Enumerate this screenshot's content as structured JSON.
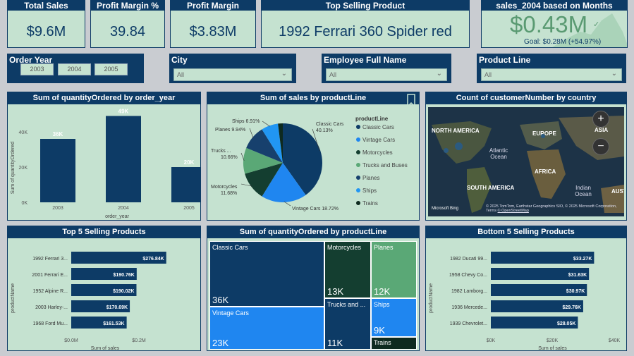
{
  "kpis": {
    "total_sales": {
      "title": "Total Sales",
      "value": "$9.6M"
    },
    "profit_margin_pct": {
      "title": "Profit Margin %",
      "value": "39.84"
    },
    "profit_margin": {
      "title": "Profit Margin",
      "value": "$3.83M"
    },
    "top_product": {
      "title": "Top Selling Product",
      "value": "1992 Ferrari 360 Spider red"
    },
    "sales_2004": {
      "title": "sales_2004 based on Months",
      "value": "$0.43M",
      "goal": "Goal: $0.28M (+54.97%)"
    }
  },
  "slicers": {
    "order_year": {
      "title": "Order Year",
      "options": [
        "2003",
        "2004",
        "2005"
      ]
    },
    "city": {
      "title": "City",
      "value": "All"
    },
    "employee": {
      "title": "Employee Full Name",
      "value": "All"
    },
    "product_line": {
      "title": "Product Line",
      "value": "All"
    }
  },
  "panels": {
    "qty_by_year": "Sum of quantityOrdered by order_year",
    "sales_by_line": "Sum of sales by productLine",
    "customers_by_country": "Count of customerNumber by country",
    "top5": "Top 5 Selling Products",
    "qty_by_line": "Sum of quantityOrdered by productLine",
    "bottom5": "Bottom 5 Selling Products"
  },
  "map": {
    "labels": [
      "NORTH AMERICA",
      "EUROPE",
      "ASIA",
      "Atlantic Ocean",
      "AFRICA",
      "SOUTH AMERICA",
      "Indian Ocean",
      "AUST"
    ],
    "attribution": "© 2025 TomTom, Earthstar Geographics SIO, © 2025 Microsoft Corporation, Terms",
    "attribution2": "© OpenStreetMap",
    "brand": "Microsoft Bing"
  },
  "treemap": [
    {
      "name": "Classic Cars",
      "value": "36K"
    },
    {
      "name": "Vintage Cars",
      "value": "23K"
    },
    {
      "name": "Motorcycles",
      "value": "13K"
    },
    {
      "name": "Trucks and ...",
      "value": "11K"
    },
    {
      "name": "Planes",
      "value": "12K"
    },
    {
      "name": "Ships",
      "value": "9K"
    },
    {
      "name": "Trains",
      "value": ""
    }
  ],
  "colors": {
    "navy": "#0d3b66",
    "mint": "#c5e2d0",
    "blue": "#1f86f0",
    "green": "#5aa876",
    "darkgreen": "#143e30"
  },
  "chart_data": [
    {
      "type": "bar",
      "title": "Sum of quantityOrdered by order_year",
      "xlabel": "order_year",
      "ylabel": "Sum of quantityOrdered",
      "categories": [
        "2003",
        "2004",
        "2005"
      ],
      "values": [
        36,
        49,
        20
      ],
      "data_labels": [
        "36K",
        "49K",
        "20K"
      ],
      "ylim": [
        0,
        50
      ],
      "yticks": [
        "0K",
        "20K",
        "40K"
      ]
    },
    {
      "type": "pie",
      "title": "Sum of sales by productLine",
      "legend_title": "productLine",
      "categories": [
        "Classic Cars",
        "Vintage Cars",
        "Motorcycles",
        "Trucks and Buses",
        "Planes",
        "Ships",
        "Trains"
      ],
      "values": [
        40.13,
        18.72,
        11.68,
        10.66,
        9.94,
        6.91,
        1.96
      ],
      "labels": [
        "Classic Cars",
        "Vintage Cars 18.72%",
        "Motorcycles",
        "Trucks ...",
        "Planes 9.94%",
        "Ships 6.91%",
        ""
      ],
      "label_values": [
        "40.13%",
        "",
        "11.68%",
        "10.66%",
        "",
        "",
        ""
      ],
      "colors": [
        "#0d3b66",
        "#1f86f0",
        "#143e30",
        "#5aa876",
        "#17406d",
        "#2196f3",
        "#0e2a1f"
      ]
    },
    {
      "type": "bar",
      "orientation": "horizontal",
      "title": "Top 5 Selling Products",
      "xlabel": "Sum of sales",
      "ylabel": "productName",
      "categories": [
        "1992 Ferrari 3...",
        "2001 Ferrari E...",
        "1952 Alpine R...",
        "2003 Harley-...",
        "1968 Ford Mu..."
      ],
      "values": [
        276.84,
        190.76,
        190.02,
        170.69,
        161.53
      ],
      "data_labels": [
        "$276.84K",
        "$190.76K",
        "$190.02K",
        "$170.69K",
        "$161.53K"
      ],
      "xticks": [
        "$0.0M",
        "$0.2M"
      ],
      "xlim": [
        0,
        300
      ]
    },
    {
      "type": "bar",
      "orientation": "horizontal",
      "title": "Bottom 5 Selling Products",
      "xlabel": "Sum of sales",
      "ylabel": "productName",
      "categories": [
        "1982 Ducati 99...",
        "1958 Chevy Co...",
        "1982 Lamborg...",
        "1936 Mercede...",
        "1939 Chevrolet..."
      ],
      "values": [
        33.27,
        31.63,
        30.97,
        29.76,
        28.05
      ],
      "data_labels": [
        "$33.27K",
        "$31.63K",
        "$30.97K",
        "$29.76K",
        "$28.05K"
      ],
      "xticks": [
        "$0K",
        "$20K",
        "$40K"
      ],
      "xlim": [
        0,
        40
      ]
    }
  ]
}
